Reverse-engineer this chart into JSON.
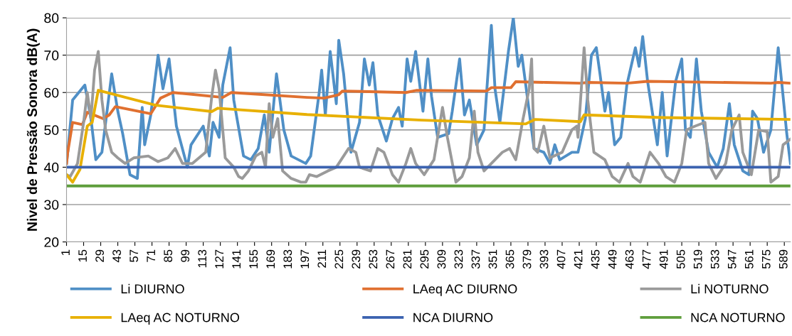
{
  "chart_data": {
    "type": "line",
    "ylabel": "Nivel de Pressão Sonora dB(A)",
    "xlim": [
      1,
      594
    ],
    "xticks": [
      1,
      15,
      29,
      43,
      57,
      71,
      85,
      99,
      113,
      127,
      141,
      155,
      169,
      183,
      197,
      211,
      225,
      239,
      253,
      267,
      281,
      295,
      309,
      323,
      337,
      351,
      365,
      379,
      393,
      407,
      421,
      435,
      449,
      463,
      477,
      491,
      505,
      519,
      533,
      547,
      561,
      575,
      589
    ],
    "ylim": [
      20,
      80
    ],
    "yticks": [
      20,
      30,
      40,
      50,
      60,
      70,
      80
    ],
    "grid": "y",
    "legend": "bottom",
    "marker": "none",
    "line_style": "solid",
    "series": [
      {
        "name": "Li DIURNO",
        "color": "#4f8fc6",
        "x": [
          1,
          2,
          6,
          16,
          21,
          25,
          30,
          38,
          43,
          47,
          53,
          59,
          63,
          65,
          70,
          76,
          80,
          85,
          91,
          100,
          103,
          113,
          118,
          121,
          126,
          129,
          135,
          138,
          146,
          152,
          158,
          163,
          167,
          173,
          179,
          185,
          197,
          201,
          208,
          210,
          213,
          217,
          222,
          224,
          228,
          234,
          241,
          245,
          249,
          252,
          256,
          263,
          268,
          273,
          276,
          280,
          283,
          287,
          293,
          297,
          300,
          305,
          314,
          317,
          323,
          327,
          331,
          337,
          343,
          349,
          352,
          356,
          363,
          367,
          371,
          374,
          380,
          384,
          392,
          397,
          401,
          405,
          415,
          420,
          426,
          431,
          435,
          438,
          442,
          445,
          450,
          455,
          460,
          467,
          470,
          473,
          477,
          485,
          489,
          493,
          500,
          505,
          508,
          512,
          517,
          521,
          527,
          534,
          539,
          544,
          548,
          555,
          560,
          563,
          567,
          572,
          578,
          584,
          588,
          591,
          594
        ],
        "values": [
          41,
          44,
          58,
          62,
          53,
          42,
          44,
          65,
          55,
          49,
          38,
          37,
          56,
          46,
          54,
          70,
          61,
          69,
          51,
          40,
          46,
          51,
          43,
          52,
          48,
          62,
          72,
          58,
          43,
          42,
          45,
          54,
          44,
          65,
          50,
          43,
          41,
          43,
          60,
          66,
          54,
          71,
          57,
          74,
          65,
          44,
          52,
          69,
          62,
          68,
          54,
          47,
          53,
          56,
          51,
          69,
          63,
          71,
          55,
          69,
          59,
          48,
          49,
          55,
          69,
          54,
          58,
          46,
          50,
          78,
          61,
          52,
          71,
          80,
          67,
          70,
          55,
          45,
          44,
          41,
          46,
          42,
          44,
          44,
          53,
          70,
          72,
          65,
          55,
          60,
          46,
          48,
          62,
          72,
          67,
          75,
          63,
          46,
          60,
          43,
          63,
          69,
          50,
          48,
          69,
          55,
          44,
          40,
          45,
          57,
          46,
          39,
          38,
          55,
          53,
          44,
          50,
          72,
          59,
          49,
          41
        ]
      },
      {
        "name": "LAeq AC DIURNO",
        "color": "#e07030",
        "x": [
          1,
          2,
          6,
          14,
          18,
          31,
          36,
          41,
          70,
          78,
          88,
          129,
          136,
          198,
          212,
          224,
          227,
          279,
          288,
          345,
          349,
          365,
          369,
          394,
          422,
          428,
          460,
          477,
          578,
          584,
          594
        ],
        "values": [
          41,
          44,
          52,
          51.4,
          54.7,
          53,
          54,
          56.2,
          54.3,
          58.5,
          60,
          58.7,
          60,
          58.7,
          58.5,
          59.4,
          60.4,
          60,
          60.6,
          60.4,
          61.3,
          61.3,
          62.9,
          62.7,
          62.5,
          62.7,
          62.5,
          63,
          62.5,
          62.7,
          62.5
        ]
      },
      {
        "name": "Li NOTURNO",
        "color": "#9a9a9a",
        "x": [
          1,
          4,
          10,
          15,
          18,
          21,
          24,
          27,
          30,
          33,
          38,
          43,
          49,
          56,
          68,
          76,
          84,
          90,
          96,
          104,
          115,
          120,
          123,
          126,
          131,
          138,
          142,
          145,
          150,
          156,
          161,
          164,
          167,
          170,
          174,
          178,
          185,
          193,
          197,
          200,
          206,
          215,
          222,
          232,
          238,
          241,
          250,
          256,
          261,
          268,
          273,
          279,
          283,
          287,
          294,
          302,
          309,
          313,
          320,
          325,
          331,
          335,
          338,
          343,
          352,
          358,
          364,
          369,
          375,
          380,
          382,
          384,
          387,
          392,
          397,
          407,
          415,
          419,
          420,
          425,
          428,
          433,
          442,
          448,
          454,
          461,
          465,
          471,
          479,
          486,
          492,
          499,
          505,
          509,
          516,
          524,
          527,
          533,
          541,
          546,
          552,
          555,
          562,
          568,
          575,
          578,
          584,
          588,
          594
        ],
        "values": [
          38,
          37.5,
          41,
          52,
          60,
          53,
          66,
          71,
          58,
          50,
          44,
          42.5,
          41,
          42.5,
          43,
          41.5,
          42.5,
          45,
          41,
          41,
          44,
          59,
          66,
          61,
          42.5,
          40,
          37.5,
          37,
          39,
          43,
          44,
          40,
          57,
          48,
          53,
          39,
          37,
          36,
          36,
          38,
          37.5,
          39,
          40,
          45,
          44,
          40,
          39,
          45,
          44,
          38,
          36,
          41,
          45,
          41,
          38,
          42,
          56,
          48,
          36,
          37.5,
          42.5,
          55,
          44,
          39,
          42,
          44,
          45,
          42,
          53,
          61,
          69,
          45,
          44,
          51,
          42.5,
          44,
          50,
          51,
          48,
          72,
          58,
          44,
          42,
          37.5,
          36,
          41,
          37.5,
          36,
          44,
          41,
          37.5,
          36,
          41,
          50,
          51,
          52,
          41,
          37,
          41,
          50,
          54,
          44,
          38,
          50,
          49.5,
          36,
          37.5,
          46,
          47.5
        ]
      },
      {
        "name": "LAeq AC NOTURNO",
        "color": "#e8b000",
        "x": [
          1,
          6,
          12,
          18,
          22,
          27,
          74,
          120,
          125,
          198,
          292,
          377,
          385,
          422,
          425,
          489,
          594
        ],
        "values": [
          38,
          36,
          39.4,
          51,
          52,
          60.6,
          56.6,
          54.9,
          55.8,
          54.1,
          52.6,
          51.6,
          52.8,
          52.2,
          54,
          53.3,
          52.8
        ]
      },
      {
        "name": "NCA DIURNO",
        "color": "#3b62b0",
        "x": [
          1,
          594
        ],
        "values": [
          40,
          40
        ]
      },
      {
        "name": "NCA NOTURNO",
        "color": "#5f9e3c",
        "x": [
          1,
          594
        ],
        "values": [
          35,
          35
        ]
      }
    ]
  }
}
